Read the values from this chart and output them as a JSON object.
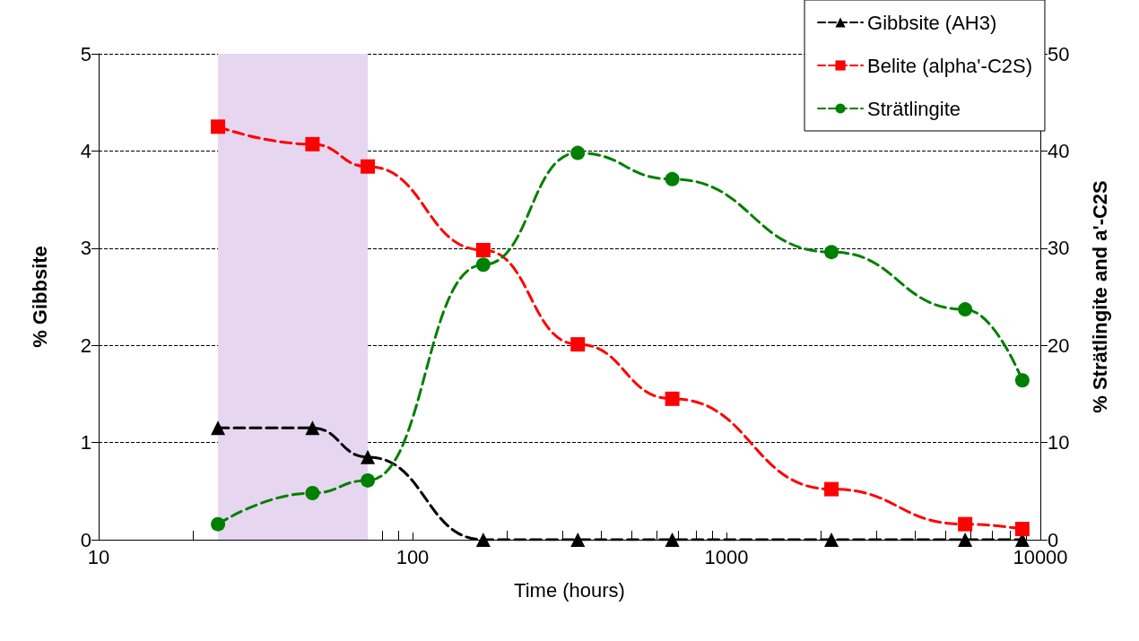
{
  "chart_data": {
    "type": "line",
    "xlabel": "Time (hours)",
    "ylabel": "% Gibbsite",
    "y2label": "% Strätlingite and a'-C2S",
    "x": [
      24,
      48,
      72,
      168,
      336,
      672,
      2160,
      5760,
      8760
    ],
    "series": [
      {
        "name": "Gibbsite (AH3)",
        "color": "#000000",
        "marker": "triangle",
        "values": [
          1.15,
          1.15,
          0.85,
          0,
          0,
          0,
          0,
          0,
          0
        ]
      },
      {
        "name": "Belite (alpha'-C2S)",
        "color": "#ff0000",
        "marker": "square",
        "axis": "y2",
        "values": [
          42.5,
          40.7,
          38.4,
          29.8,
          20.1,
          14.5,
          5.2,
          1.6,
          1.1
        ]
      },
      {
        "name": "Strätlingite",
        "color": "#008000",
        "marker": "circle",
        "axis": "y2",
        "values": [
          1.6,
          4.8,
          6.1,
          28.3,
          39.8,
          37.1,
          29.6,
          23.7,
          16.4
        ]
      }
    ],
    "log": "x",
    "xlim": [
      10,
      10000
    ],
    "xticks": [
      10,
      100,
      1000,
      10000
    ],
    "ylim": [
      0,
      5
    ],
    "yticks": [
      0,
      1,
      2,
      3,
      4,
      5
    ],
    "y2lim": [
      0,
      50
    ],
    "y2ticks": [
      0,
      10,
      20,
      30,
      40,
      50
    ],
    "bands": [
      {
        "axis": "x",
        "from": 24,
        "to": 72,
        "color": "#e6d6f0"
      }
    ],
    "grid": "y",
    "legend": "top right",
    "line_style": "dashed"
  }
}
